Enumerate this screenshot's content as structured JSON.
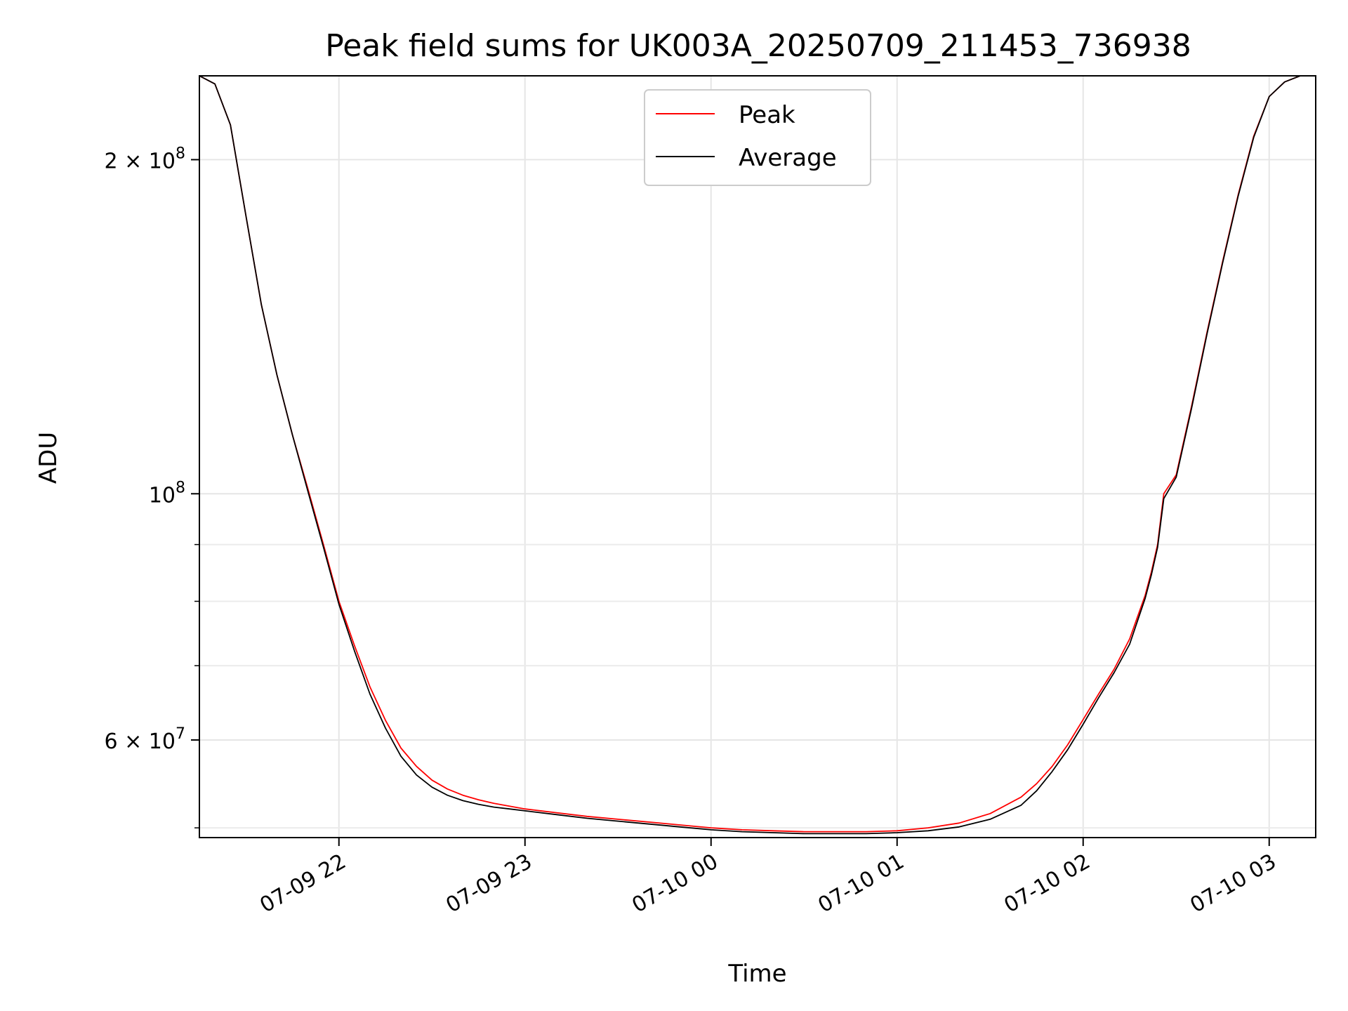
{
  "chart_data": {
    "type": "line",
    "title": "Peak field sums for UK003A_20250709_211453_736938",
    "xlabel": "Time",
    "ylabel": "ADU",
    "yscale": "log",
    "xlim": [
      "2025-07-09 21:15",
      "2025-07-10 03:15"
    ],
    "ylim": [
      49000000,
      238000000
    ],
    "grid": true,
    "legend_position": "upper-center",
    "x_ticks": [
      {
        "value": "2025-07-09 22:00",
        "label": "07-09 22"
      },
      {
        "value": "2025-07-09 23:00",
        "label": "07-09 23"
      },
      {
        "value": "2025-07-10 00:00",
        "label": "07-10 00"
      },
      {
        "value": "2025-07-10 01:00",
        "label": "07-10 01"
      },
      {
        "value": "2025-07-10 02:00",
        "label": "07-10 02"
      },
      {
        "value": "2025-07-10 03:00",
        "label": "07-10 03"
      }
    ],
    "y_major_ticks": [
      {
        "value": 200000000,
        "mant": "2",
        "times": "×",
        "base": "10",
        "exp": "8"
      },
      {
        "value": 100000000,
        "mant": "",
        "times": "",
        "base": "10",
        "exp": "8"
      },
      {
        "value": 60000000,
        "mant": "6",
        "times": "×",
        "base": "10",
        "exp": "7"
      }
    ],
    "y_minor_ticks": [
      50000000,
      70000000,
      80000000,
      90000000
    ],
    "series": [
      {
        "name": "Peak",
        "color": "#ff0000",
        "x": [
          "2025-07-09 21:15",
          "2025-07-09 21:20",
          "2025-07-09 21:25",
          "2025-07-09 21:30",
          "2025-07-09 21:35",
          "2025-07-09 21:40",
          "2025-07-09 21:45",
          "2025-07-09 21:50",
          "2025-07-09 21:55",
          "2025-07-09 22:00",
          "2025-07-09 22:05",
          "2025-07-09 22:10",
          "2025-07-09 22:15",
          "2025-07-09 22:20",
          "2025-07-09 22:25",
          "2025-07-09 22:30",
          "2025-07-09 22:35",
          "2025-07-09 22:40",
          "2025-07-09 22:45",
          "2025-07-09 22:50",
          "2025-07-09 22:55",
          "2025-07-09 23:00",
          "2025-07-09 23:10",
          "2025-07-09 23:20",
          "2025-07-09 23:30",
          "2025-07-09 23:40",
          "2025-07-09 23:50",
          "2025-07-10 00:00",
          "2025-07-10 00:10",
          "2025-07-10 00:20",
          "2025-07-10 00:30",
          "2025-07-10 00:40",
          "2025-07-10 00:50",
          "2025-07-10 01:00",
          "2025-07-10 01:10",
          "2025-07-10 01:20",
          "2025-07-10 01:30",
          "2025-07-10 01:40",
          "2025-07-10 01:45",
          "2025-07-10 01:50",
          "2025-07-10 01:55",
          "2025-07-10 02:00",
          "2025-07-10 02:05",
          "2025-07-10 02:10",
          "2025-07-10 02:15",
          "2025-07-10 02:20",
          "2025-07-10 02:22",
          "2025-07-10 02:24",
          "2025-07-10 02:26",
          "2025-07-10 02:30",
          "2025-07-10 02:35",
          "2025-07-10 02:40",
          "2025-07-10 02:45",
          "2025-07-10 02:50",
          "2025-07-10 02:55",
          "2025-07-10 03:00",
          "2025-07-10 03:05",
          "2025-07-10 03:10",
          "2025-07-10 03:15"
        ],
        "y": [
          238000000,
          234000000,
          215000000,
          178000000,
          148000000,
          128000000,
          113000000,
          101000000,
          90000000,
          80000000,
          73000000,
          67000000,
          62500000,
          59000000,
          56800000,
          55200000,
          54200000,
          53500000,
          53000000,
          52600000,
          52300000,
          52000000,
          51600000,
          51200000,
          50900000,
          50600000,
          50300000,
          50000000,
          49800000,
          49700000,
          49600000,
          49600000,
          49600000,
          49700000,
          50000000,
          50500000,
          51500000,
          53300000,
          54800000,
          56800000,
          59400000,
          62600000,
          66000000,
          69500000,
          74000000,
          81000000,
          85000000,
          90000000,
          100000000,
          104000000,
          120000000,
          140000000,
          162000000,
          186000000,
          210000000,
          228000000,
          235000000,
          238000000,
          238000000
        ]
      },
      {
        "name": "Average",
        "color": "#000000",
        "x": [
          "2025-07-09 21:15",
          "2025-07-09 21:20",
          "2025-07-09 21:25",
          "2025-07-09 21:30",
          "2025-07-09 21:35",
          "2025-07-09 21:40",
          "2025-07-09 21:45",
          "2025-07-09 21:50",
          "2025-07-09 21:55",
          "2025-07-09 22:00",
          "2025-07-09 22:05",
          "2025-07-09 22:10",
          "2025-07-09 22:15",
          "2025-07-09 22:20",
          "2025-07-09 22:25",
          "2025-07-09 22:30",
          "2025-07-09 22:35",
          "2025-07-09 22:40",
          "2025-07-09 22:45",
          "2025-07-09 22:50",
          "2025-07-09 22:55",
          "2025-07-09 23:00",
          "2025-07-09 23:10",
          "2025-07-09 23:20",
          "2025-07-09 23:30",
          "2025-07-09 23:40",
          "2025-07-09 23:50",
          "2025-07-10 00:00",
          "2025-07-10 00:10",
          "2025-07-10 00:20",
          "2025-07-10 00:30",
          "2025-07-10 00:40",
          "2025-07-10 00:50",
          "2025-07-10 01:00",
          "2025-07-10 01:10",
          "2025-07-10 01:20",
          "2025-07-10 01:30",
          "2025-07-10 01:40",
          "2025-07-10 01:45",
          "2025-07-10 01:50",
          "2025-07-10 01:55",
          "2025-07-10 02:00",
          "2025-07-10 02:05",
          "2025-07-10 02:10",
          "2025-07-10 02:15",
          "2025-07-10 02:20",
          "2025-07-10 02:22",
          "2025-07-10 02:24",
          "2025-07-10 02:26",
          "2025-07-10 02:30",
          "2025-07-10 02:35",
          "2025-07-10 02:40",
          "2025-07-10 02:45",
          "2025-07-10 02:50",
          "2025-07-10 02:55",
          "2025-07-10 03:00",
          "2025-07-10 03:05",
          "2025-07-10 03:10",
          "2025-07-10 03:15"
        ],
        "y": [
          238000000,
          234000000,
          215000000,
          178000000,
          148000000,
          128000000,
          113000000,
          100500000,
          89500000,
          79500000,
          72200000,
          66000000,
          61500000,
          58000000,
          55800000,
          54400000,
          53500000,
          52900000,
          52500000,
          52200000,
          52000000,
          51800000,
          51400000,
          51000000,
          50700000,
          50400000,
          50100000,
          49800000,
          49600000,
          49500000,
          49400000,
          49400000,
          49400000,
          49500000,
          49700000,
          50100000,
          50900000,
          52400000,
          54000000,
          56200000,
          58800000,
          62000000,
          65500000,
          69000000,
          73200000,
          80500000,
          84500000,
          89500000,
          99000000,
          103500000,
          119500000,
          139500000,
          161500000,
          185500000,
          209500000,
          228000000,
          235000000,
          238000000,
          238000000
        ]
      }
    ]
  }
}
